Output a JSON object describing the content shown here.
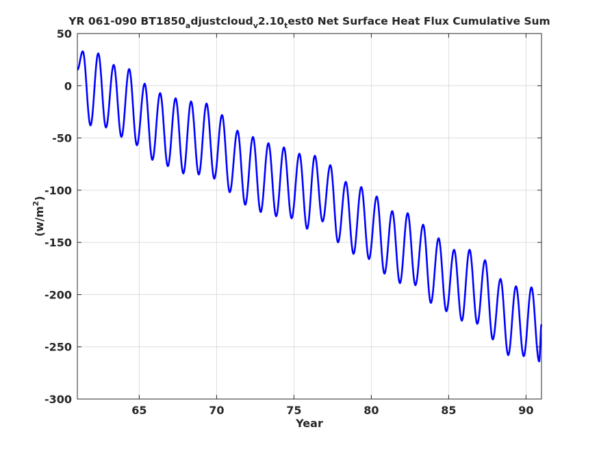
{
  "title_parts": {
    "p1": "YR 061-090 BT1850",
    "s1": "a",
    "p2": "djustcloud",
    "s2": "v",
    "p3": "2.10",
    "s3": "t",
    "p4": "est0 Net Surface Heat Flux  Cumulative Sum"
  },
  "ylabel_parts": {
    "base": "(w/m",
    "sup": "2",
    "close": ")"
  },
  "chart_data": {
    "type": "line",
    "xlabel": "Year",
    "xlim": [
      61,
      91
    ],
    "ylim": [
      -300,
      50
    ],
    "xticks": [
      65,
      70,
      75,
      80,
      85,
      90
    ],
    "yticks": [
      50,
      0,
      -50,
      -100,
      -150,
      -200,
      -250,
      -300
    ],
    "grid": true,
    "line_color": "#0000ff",
    "series": [
      {
        "cycle_start_year": 61,
        "peak_phase": 0.35,
        "trough_phase": 0.85,
        "yearly_peaks": [
          33,
          31,
          20,
          16,
          2,
          -7,
          -12,
          -15,
          -17,
          -28,
          -43,
          -49,
          -55,
          -59,
          -65,
          -67,
          -76,
          -92,
          -97,
          -106,
          -120,
          -122,
          -133,
          -146,
          -157,
          -157,
          -167,
          -185,
          -192,
          -193
        ],
        "yearly_troughs": [
          -38,
          -40,
          -49,
          -57,
          -71,
          -77,
          -84,
          -85,
          -89,
          -102,
          -114,
          -121,
          -125,
          -127,
          -137,
          -130,
          -150,
          -161,
          -166,
          -180,
          -189,
          -191,
          -208,
          -216,
          -225,
          -228,
          -243,
          -258,
          -259,
          -264
        ]
      }
    ]
  }
}
